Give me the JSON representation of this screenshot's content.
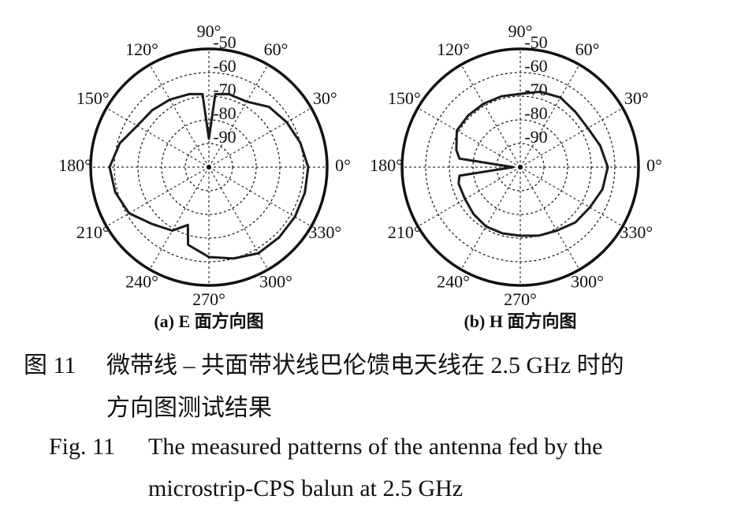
{
  "chart_data": [
    {
      "type": "polar",
      "subtitle": "(a) E 面方向图",
      "color": "#1a1a1a",
      "rlim": [
        -100,
        -50
      ],
      "rticks": [
        -90,
        -80,
        -70,
        -60,
        -50
      ],
      "thetaticks": [
        {
          "value": 0,
          "label": "0°"
        },
        {
          "value": 30,
          "label": "30°"
        },
        {
          "value": 60,
          "label": "60°"
        },
        {
          "value": 90,
          "label": "90°"
        },
        {
          "value": 120,
          "label": "120°"
        },
        {
          "value": 150,
          "label": "150°"
        },
        {
          "value": 180,
          "label": "180°"
        },
        {
          "value": 210,
          "label": "210°"
        },
        {
          "value": 240,
          "label": "240°"
        },
        {
          "value": 270,
          "label": "270°"
        },
        {
          "value": 300,
          "label": "300°"
        },
        {
          "value": 330,
          "label": "330°"
        }
      ],
      "theta": [
        0,
        15,
        30,
        45,
        60,
        75,
        85,
        90,
        95,
        105,
        120,
        135,
        150,
        165,
        180,
        195,
        210,
        225,
        240,
        250,
        255,
        270,
        285,
        300,
        315,
        330,
        345
      ],
      "r": [
        -58,
        -60,
        -62,
        -64,
        -68,
        -68,
        -69,
        -88,
        -69,
        -68,
        -67,
        -66,
        -65,
        -61,
        -58,
        -59,
        -61,
        -66,
        -69,
        -74,
        -66,
        -62,
        -60,
        -58,
        -58,
        -58,
        -58
      ]
    },
    {
      "type": "polar",
      "subtitle": "(b) H 面方向图",
      "color": "#1a1a1a",
      "rlim": [
        -100,
        -50
      ],
      "rticks": [
        -90,
        -80,
        -70,
        -60,
        -50
      ],
      "thetaticks": [
        {
          "value": 0,
          "label": "0°"
        },
        {
          "value": 30,
          "label": "30°"
        },
        {
          "value": 60,
          "label": "60°"
        },
        {
          "value": 90,
          "label": "90°"
        },
        {
          "value": 120,
          "label": "120°"
        },
        {
          "value": 150,
          "label": "150°"
        },
        {
          "value": 180,
          "label": "180°"
        },
        {
          "value": 210,
          "label": "210°"
        },
        {
          "value": 240,
          "label": "240°"
        },
        {
          "value": 270,
          "label": "270°"
        },
        {
          "value": 300,
          "label": "300°"
        },
        {
          "value": 330,
          "label": "330°"
        }
      ],
      "theta": [
        0,
        15,
        30,
        45,
        60,
        75,
        90,
        105,
        120,
        135,
        150,
        165,
        172,
        180,
        188,
        195,
        210,
        225,
        240,
        255,
        270,
        285,
        300,
        315,
        330,
        345
      ],
      "r": [
        -63,
        -65,
        -67,
        -67,
        -66,
        -67,
        -69,
        -69,
        -69,
        -69,
        -69,
        -72,
        -74,
        -97,
        -74,
        -73,
        -73,
        -72,
        -71,
        -71,
        -71,
        -70,
        -69,
        -67,
        -66,
        -64
      ]
    }
  ],
  "caption": {
    "zh_label": "图 11",
    "zh_line1": "微带线 – 共面带状线巴伦馈电天线在 2.5 GHz 时的",
    "zh_line2": "方向图测试结果",
    "en_label": "Fig. 11",
    "en_line1": "The measured patterns of the antenna fed by the",
    "en_line2": "microstrip-CPS balun at 2.5 GHz"
  }
}
